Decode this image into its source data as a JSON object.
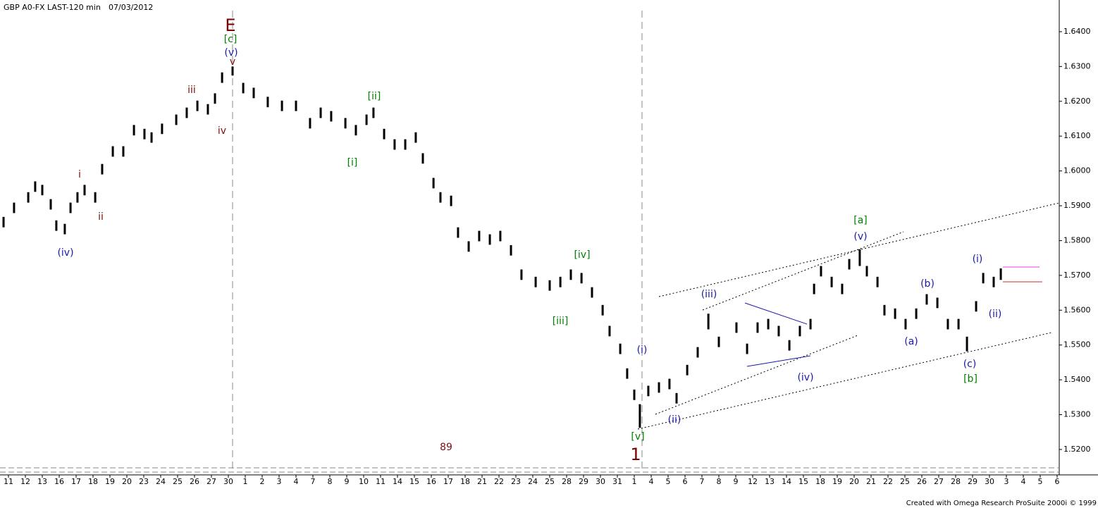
{
  "chart_data": {
    "type": "ohlc",
    "title": "GBP A0-FX LAST-120 min",
    "date": "07/03/2012",
    "footer": "Created with Omega Research ProSuite 2000i © 1999",
    "color": "#000000",
    "x": [
      0.21,
      0.83,
      1.67,
      2.08,
      2.5,
      3.0,
      3.33,
      3.83,
      4.17,
      4.58,
      5.0,
      5.63,
      6.04,
      6.67,
      7.29,
      7.92,
      8.54,
      8.96,
      9.58,
      10.42,
      11.04,
      11.67,
      12.29,
      12.71,
      13.13,
      13.75,
      14.38,
      15.0,
      15.83,
      16.67,
      17.5,
      18.33,
      18.96,
      19.58,
      20.42,
      21.04,
      21.67,
      22.08,
      22.71,
      23.33,
      23.96,
      24.58,
      25.0,
      25.63,
      26.04,
      26.67,
      27.08,
      27.71,
      28.33,
      28.96,
      29.58,
      30.21,
      30.83,
      31.67,
      32.5,
      33.13,
      33.75,
      34.38,
      35.0,
      35.63,
      36.04,
      36.67,
      37.08,
      37.5,
      37.83,
      38.33,
      38.96,
      39.58,
      40.0,
      40.63,
      41.25,
      41.88,
      42.5,
      43.54,
      44.17,
      44.79,
      45.42,
      46.04,
      46.67,
      47.29,
      47.92,
      48.13,
      48.54,
      49.17,
      49.79,
      50.21,
      50.83,
      51.25,
      51.88,
      52.29,
      52.92,
      53.54,
      54.17,
      54.79,
      55.42,
      56.04,
      56.67,
      57.17,
      57.71,
      58.13,
      58.75,
      59.17
    ],
    "high": [
      1.5868,
      1.5909,
      1.5939,
      1.597,
      1.596,
      1.5919,
      1.5858,
      1.5848,
      1.5909,
      1.5939,
      1.596,
      1.5939,
      1.602,
      1.6071,
      1.6071,
      1.6132,
      1.6121,
      1.6111,
      1.6136,
      1.6162,
      1.6182,
      1.6202,
      1.6192,
      1.6223,
      1.6283,
      1.63,
      1.6253,
      1.6239,
      1.6213,
      1.6202,
      1.6202,
      1.6152,
      1.6182,
      1.6172,
      1.6152,
      1.6132,
      1.6162,
      1.6182,
      1.6121,
      1.6091,
      1.6091,
      1.6111,
      1.6051,
      1.598,
      1.5939,
      1.5929,
      1.5838,
      1.5798,
      1.5828,
      1.5818,
      1.5828,
      1.5787,
      1.5717,
      1.5696,
      1.5686,
      1.5696,
      1.5717,
      1.5707,
      1.5666,
      1.5615,
      1.5555,
      1.5504,
      1.5433,
      1.5372,
      1.533,
      1.5383,
      1.5393,
      1.5403,
      1.5362,
      1.5443,
      1.5494,
      1.559,
      1.5524,
      1.5565,
      1.5504,
      1.5565,
      1.5575,
      1.5555,
      1.5514,
      1.5555,
      1.5575,
      1.5676,
      1.5727,
      1.5696,
      1.5676,
      1.5747,
      1.5775,
      1.5727,
      1.5696,
      1.5615,
      1.5605,
      1.5575,
      1.5605,
      1.5646,
      1.5636,
      1.5575,
      1.5575,
      1.5524,
      1.5626,
      1.5707,
      1.5696,
      1.572
    ],
    "low": [
      1.5838,
      1.5879,
      1.5909,
      1.594,
      1.593,
      1.5889,
      1.5828,
      1.5818,
      1.5879,
      1.5909,
      1.593,
      1.5909,
      1.599,
      1.6041,
      1.6041,
      1.6102,
      1.6091,
      1.6081,
      1.6106,
      1.6132,
      1.6152,
      1.6172,
      1.6162,
      1.6193,
      1.6253,
      1.6274,
      1.6223,
      1.6209,
      1.6183,
      1.6172,
      1.6172,
      1.6122,
      1.6152,
      1.6142,
      1.6122,
      1.6102,
      1.6132,
      1.6152,
      1.6091,
      1.6061,
      1.6061,
      1.6081,
      1.6021,
      1.595,
      1.5909,
      1.5899,
      1.5808,
      1.5768,
      1.5798,
      1.5788,
      1.5798,
      1.5757,
      1.5687,
      1.5666,
      1.5656,
      1.5666,
      1.5687,
      1.5677,
      1.5636,
      1.5585,
      1.5525,
      1.5474,
      1.5403,
      1.5342,
      1.5262,
      1.5353,
      1.5363,
      1.5373,
      1.5332,
      1.5413,
      1.5464,
      1.5545,
      1.5494,
      1.5535,
      1.5474,
      1.5535,
      1.5545,
      1.5525,
      1.5484,
      1.5525,
      1.5545,
      1.5646,
      1.5697,
      1.5666,
      1.5646,
      1.5717,
      1.5727,
      1.5697,
      1.5666,
      1.5585,
      1.5575,
      1.5545,
      1.5575,
      1.5616,
      1.5606,
      1.5545,
      1.5545,
      1.5482,
      1.5596,
      1.5677,
      1.5666,
      1.5687
    ],
    "xlim": [
      0,
      62.625
    ],
    "xticks": [
      {
        "value": 0.5,
        "label": "11"
      },
      {
        "value": 1.5,
        "label": "12"
      },
      {
        "value": 2.5,
        "label": "13"
      },
      {
        "value": 3.5,
        "label": "16"
      },
      {
        "value": 4.5,
        "label": "17"
      },
      {
        "value": 5.5,
        "label": "18"
      },
      {
        "value": 6.5,
        "label": "19"
      },
      {
        "value": 7.5,
        "label": "20"
      },
      {
        "value": 8.5,
        "label": "23"
      },
      {
        "value": 9.5,
        "label": "24"
      },
      {
        "value": 10.5,
        "label": "25"
      },
      {
        "value": 11.5,
        "label": "26"
      },
      {
        "value": 12.5,
        "label": "27"
      },
      {
        "value": 13.5,
        "label": "30"
      },
      {
        "value": 14.5,
        "label": "1"
      },
      {
        "value": 15.5,
        "label": "2"
      },
      {
        "value": 16.5,
        "label": "3"
      },
      {
        "value": 17.5,
        "label": "4"
      },
      {
        "value": 18.5,
        "label": "7"
      },
      {
        "value": 19.5,
        "label": "8"
      },
      {
        "value": 20.5,
        "label": "9"
      },
      {
        "value": 21.5,
        "label": "10"
      },
      {
        "value": 22.5,
        "label": "11"
      },
      {
        "value": 23.5,
        "label": "14"
      },
      {
        "value": 24.5,
        "label": "15"
      },
      {
        "value": 25.5,
        "label": "16"
      },
      {
        "value": 26.5,
        "label": "17"
      },
      {
        "value": 27.5,
        "label": "18"
      },
      {
        "value": 28.5,
        "label": "21"
      },
      {
        "value": 29.5,
        "label": "22"
      },
      {
        "value": 30.5,
        "label": "23"
      },
      {
        "value": 31.5,
        "label": "24"
      },
      {
        "value": 32.5,
        "label": "25"
      },
      {
        "value": 33.5,
        "label": "28"
      },
      {
        "value": 34.5,
        "label": "29"
      },
      {
        "value": 35.5,
        "label": "30"
      },
      {
        "value": 36.5,
        "label": "31"
      },
      {
        "value": 37.5,
        "label": "1"
      },
      {
        "value": 38.5,
        "label": "4"
      },
      {
        "value": 39.5,
        "label": "5"
      },
      {
        "value": 40.5,
        "label": "6"
      },
      {
        "value": 41.5,
        "label": "7"
      },
      {
        "value": 42.5,
        "label": "8"
      },
      {
        "value": 43.5,
        "label": "9"
      },
      {
        "value": 44.5,
        "label": "12"
      },
      {
        "value": 45.5,
        "label": "13"
      },
      {
        "value": 46.5,
        "label": "14"
      },
      {
        "value": 47.5,
        "label": "15"
      },
      {
        "value": 48.5,
        "label": "18"
      },
      {
        "value": 49.5,
        "label": "19"
      },
      {
        "value": 50.5,
        "label": "20"
      },
      {
        "value": 51.5,
        "label": "21"
      },
      {
        "value": 52.5,
        "label": "22"
      },
      {
        "value": 53.5,
        "label": "25"
      },
      {
        "value": 54.5,
        "label": "26"
      },
      {
        "value": 55.5,
        "label": "27"
      },
      {
        "value": 56.5,
        "label": "28"
      },
      {
        "value": 57.5,
        "label": "29"
      },
      {
        "value": 58.5,
        "label": "30"
      },
      {
        "value": 59.5,
        "label": "3"
      },
      {
        "value": 60.5,
        "label": "4"
      },
      {
        "value": 61.5,
        "label": "5"
      },
      {
        "value": 62.5,
        "label": "6"
      }
    ],
    "ylim": [
      1.5131,
      1.6491
    ],
    "yticks": [
      {
        "value": 1.52,
        "label": "1.5200"
      },
      {
        "value": 1.53,
        "label": "1.5300"
      },
      {
        "value": 1.54,
        "label": "1.5400"
      },
      {
        "value": 1.55,
        "label": "1.5500"
      },
      {
        "value": 1.56,
        "label": "1.5600"
      },
      {
        "value": 1.57,
        "label": "1.5700"
      },
      {
        "value": 1.58,
        "label": "1.5800"
      },
      {
        "value": 1.59,
        "label": "1.5900"
      },
      {
        "value": 1.6,
        "label": "1.6000"
      },
      {
        "value": 1.61,
        "label": "1.6100"
      },
      {
        "value": 1.62,
        "label": "1.6200"
      },
      {
        "value": 1.63,
        "label": "1.6300"
      },
      {
        "value": 1.64,
        "label": "1.6400"
      }
    ],
    "annotations": [
      "E",
      "[c]",
      "(v)",
      "v",
      "iii",
      "iv",
      "i",
      "ii",
      "(iv)",
      "[ii]",
      "[i]",
      "[iv]",
      "[iii]",
      "89",
      "1",
      "[v]",
      "(i)",
      "(ii)",
      "(iii)",
      "(iv)",
      "[a]",
      "(v)",
      "(b)",
      "(a)",
      "(c)",
      "[b]",
      "(i)",
      "(ii)"
    ]
  }
}
